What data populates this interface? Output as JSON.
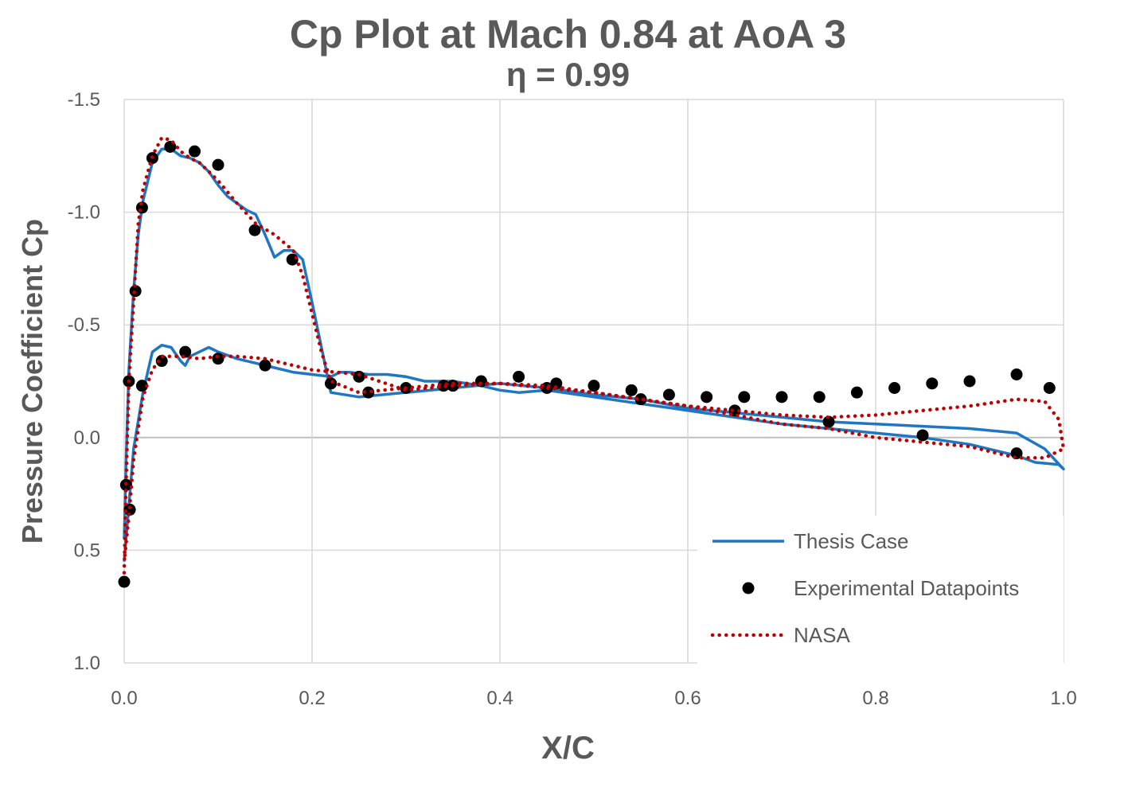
{
  "chart_data": {
    "type": "line",
    "title": "Cp Plot at Mach 0.84 at AoA 3",
    "subtitle": "η = 0.99",
    "xlabel": "X/C",
    "ylabel": "Pressure Coefficient Cp",
    "xlim": [
      0.0,
      1.0
    ],
    "ylim": [
      -1.5,
      1.0
    ],
    "y_inverted": true,
    "x_ticks": [
      "0.0",
      "0.2",
      "0.4",
      "0.6",
      "0.8",
      "1.0"
    ],
    "y_ticks": [
      "-1.5",
      "-1.0",
      "-0.5",
      "0.0",
      "0.5",
      "1.0"
    ],
    "grid": true,
    "legend_position": "bottom-right",
    "series": [
      {
        "name": "Thesis Case",
        "style": "solid",
        "color": "#1f77c4",
        "x": [
          0.0,
          0.002,
          0.005,
          0.01,
          0.015,
          0.02,
          0.03,
          0.04,
          0.05,
          0.06,
          0.07,
          0.08,
          0.09,
          0.1,
          0.11,
          0.12,
          0.13,
          0.14,
          0.15,
          0.16,
          0.17,
          0.18,
          0.19,
          0.2,
          0.21,
          0.22,
          0.25,
          0.3,
          0.35,
          0.4,
          0.45,
          0.5,
          0.55,
          0.6,
          0.65,
          0.7,
          0.75,
          0.8,
          0.85,
          0.9,
          0.95,
          0.98,
          1.0,
          0.995,
          0.97,
          0.95,
          0.9,
          0.85,
          0.8,
          0.75,
          0.7,
          0.65,
          0.6,
          0.55,
          0.5,
          0.45,
          0.42,
          0.4,
          0.38,
          0.35,
          0.32,
          0.3,
          0.28,
          0.26,
          0.24,
          0.23,
          0.22,
          0.2,
          0.18,
          0.16,
          0.14,
          0.12,
          0.1,
          0.09,
          0.08,
          0.07,
          0.065,
          0.06,
          0.05,
          0.04,
          0.03,
          0.02,
          0.01,
          0.005,
          0.0
        ],
        "y": [
          0.45,
          0.1,
          -0.3,
          -0.65,
          -0.9,
          -1.05,
          -1.22,
          -1.28,
          -1.28,
          -1.25,
          -1.24,
          -1.22,
          -1.18,
          -1.12,
          -1.07,
          -1.04,
          -1.01,
          -0.99,
          -0.9,
          -0.8,
          -0.83,
          -0.83,
          -0.79,
          -0.6,
          -0.4,
          -0.2,
          -0.18,
          -0.2,
          -0.22,
          -0.24,
          -0.22,
          -0.19,
          -0.17,
          -0.13,
          -0.11,
          -0.09,
          -0.07,
          -0.06,
          -0.05,
          -0.04,
          -0.02,
          0.05,
          0.14,
          0.12,
          0.11,
          0.08,
          0.03,
          0.0,
          -0.02,
          -0.04,
          -0.06,
          -0.09,
          -0.12,
          -0.15,
          -0.18,
          -0.21,
          -0.2,
          -0.21,
          -0.23,
          -0.25,
          -0.25,
          -0.27,
          -0.28,
          -0.28,
          -0.29,
          -0.29,
          -0.27,
          -0.28,
          -0.29,
          -0.31,
          -0.33,
          -0.35,
          -0.38,
          -0.4,
          -0.38,
          -0.36,
          -0.32,
          -0.34,
          -0.4,
          -0.41,
          -0.38,
          -0.2,
          0.05,
          0.3,
          0.55
        ]
      },
      {
        "name": "Experimental Datapoints",
        "style": "markers",
        "color": "#000000",
        "x": [
          0.0,
          0.005,
          0.012,
          0.019,
          0.03,
          0.049,
          0.075,
          0.1,
          0.139,
          0.179,
          0.22,
          0.25,
          0.3,
          0.35,
          0.42,
          0.46,
          0.5,
          0.55,
          0.58,
          0.65,
          0.7,
          0.75,
          0.82,
          0.9,
          0.95,
          0.985,
          0.002,
          0.006,
          0.019,
          0.04,
          0.065,
          0.1,
          0.15,
          0.22,
          0.26,
          0.34,
          0.38,
          0.45,
          0.54,
          0.62,
          0.66,
          0.74,
          0.78,
          0.85,
          0.86,
          0.95
        ],
        "y": [
          0.64,
          -0.25,
          -0.65,
          -1.02,
          -1.24,
          -1.29,
          -1.27,
          -1.21,
          -0.92,
          -0.79,
          -0.24,
          -0.27,
          -0.22,
          -0.23,
          -0.27,
          -0.24,
          -0.23,
          -0.17,
          -0.19,
          -0.12,
          -0.18,
          -0.07,
          -0.22,
          -0.25,
          -0.28,
          -0.22,
          0.21,
          0.32,
          -0.23,
          -0.34,
          -0.38,
          -0.35,
          -0.32,
          -0.24,
          -0.2,
          -0.23,
          -0.25,
          -0.22,
          -0.21,
          -0.18,
          -0.18,
          -0.18,
          -0.2,
          -0.01,
          -0.24,
          0.07
        ]
      },
      {
        "name": "NASA",
        "style": "dotted",
        "color": "#c00000",
        "x": [
          0.0,
          0.002,
          0.005,
          0.01,
          0.015,
          0.02,
          0.03,
          0.04,
          0.05,
          0.06,
          0.07,
          0.08,
          0.09,
          0.1,
          0.12,
          0.14,
          0.16,
          0.18,
          0.19,
          0.2,
          0.21,
          0.22,
          0.25,
          0.3,
          0.35,
          0.4,
          0.45,
          0.5,
          0.55,
          0.6,
          0.65,
          0.7,
          0.75,
          0.8,
          0.85,
          0.9,
          0.95,
          0.98,
          0.995,
          1.0,
          0.995,
          0.98,
          0.95,
          0.9,
          0.85,
          0.8,
          0.75,
          0.7,
          0.65,
          0.6,
          0.55,
          0.5,
          0.45,
          0.4,
          0.35,
          0.3,
          0.25,
          0.2,
          0.15,
          0.12,
          0.1,
          0.08,
          0.06,
          0.04,
          0.03,
          0.02,
          0.01,
          0.005,
          0.0
        ],
        "y": [
          0.6,
          0.2,
          -0.25,
          -0.6,
          -0.95,
          -1.1,
          -1.25,
          -1.33,
          -1.32,
          -1.27,
          -1.24,
          -1.22,
          -1.18,
          -1.14,
          -1.04,
          -0.95,
          -0.9,
          -0.83,
          -0.72,
          -0.55,
          -0.38,
          -0.25,
          -0.2,
          -0.22,
          -0.24,
          -0.24,
          -0.23,
          -0.2,
          -0.17,
          -0.14,
          -0.12,
          -0.1,
          -0.09,
          -0.1,
          -0.12,
          -0.14,
          -0.17,
          -0.16,
          -0.08,
          0.05,
          0.06,
          0.09,
          0.09,
          0.04,
          0.02,
          0.0,
          -0.04,
          -0.06,
          -0.1,
          -0.14,
          -0.17,
          -0.2,
          -0.22,
          -0.24,
          -0.23,
          -0.21,
          -0.28,
          -0.3,
          -0.35,
          -0.36,
          -0.36,
          -0.35,
          -0.36,
          -0.36,
          -0.3,
          -0.18,
          0.1,
          0.35,
          0.55
        ]
      }
    ]
  }
}
